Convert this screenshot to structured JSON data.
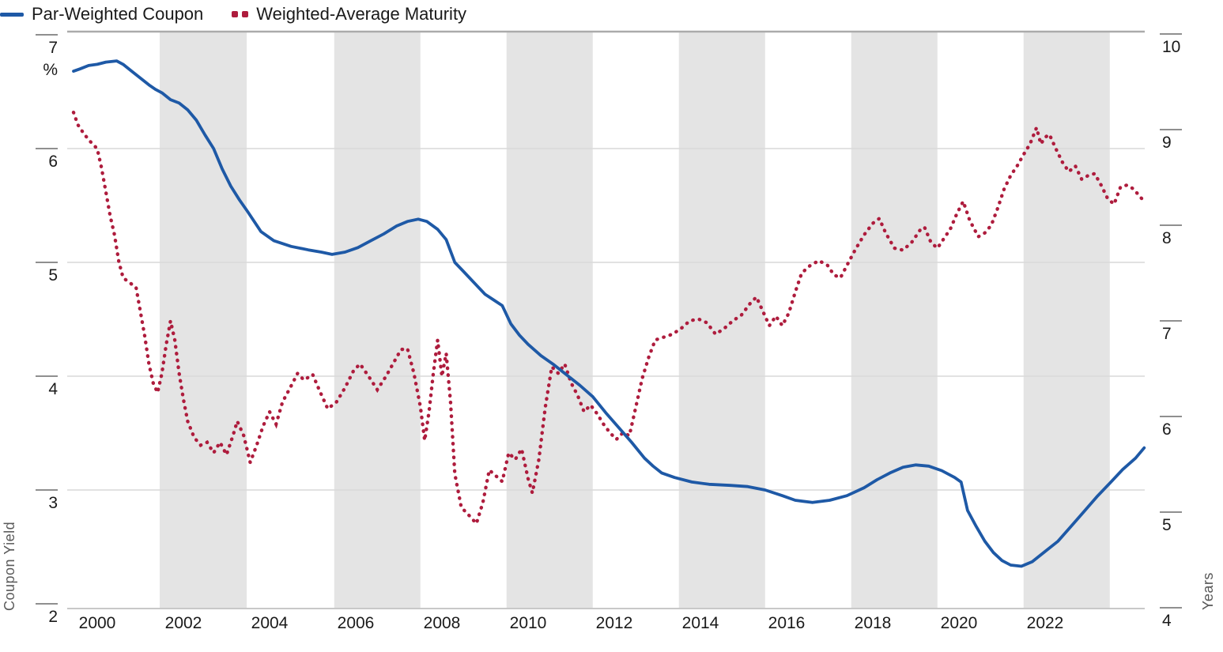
{
  "legend": {
    "items": [
      {
        "label": "Par-Weighted Coupon",
        "style": "solid"
      },
      {
        "label": "Weighted-Average Maturity",
        "style": "dotted"
      }
    ]
  },
  "left_axis": {
    "title": "Coupon Yield",
    "unit": "%",
    "ticks": [
      7,
      6,
      5,
      4,
      3,
      2
    ],
    "range": [
      2,
      7
    ]
  },
  "right_axis": {
    "title": "Years",
    "ticks": [
      10,
      9,
      8,
      7,
      6,
      5,
      4
    ],
    "range": [
      4,
      10
    ]
  },
  "x_axis": {
    "ticks": [
      2000,
      2002,
      2004,
      2006,
      2008,
      2010,
      2012,
      2014,
      2016,
      2018,
      2020,
      2022
    ],
    "range": [
      1999.3,
      2024.35
    ]
  },
  "colors": {
    "coupon": "#1E59A6",
    "maturity": "#AE1C3D",
    "band": "#E4E4E4",
    "gridline": "#D9D9D9",
    "top_border": "#ABABAB",
    "axis_line": "#C8C8C8",
    "tick_mark": "#8F8F8F"
  },
  "chart_data": {
    "type": "line",
    "title": "",
    "xlabel": "",
    "legend_position": "top-left",
    "grid": "horizontal",
    "shaded_bands_years": [
      [
        2001.45,
        2003.47
      ],
      [
        2005.5,
        2007.5
      ],
      [
        2009.5,
        2011.5
      ],
      [
        2013.5,
        2015.5
      ],
      [
        2017.5,
        2019.5
      ],
      [
        2021.5,
        2023.5
      ]
    ],
    "series": [
      {
        "name": "Par-Weighted Coupon",
        "axis": "left",
        "unit": "%",
        "style": "solid",
        "points": [
          [
            1999.45,
            6.68
          ],
          [
            1999.6,
            6.7
          ],
          [
            1999.8,
            6.73
          ],
          [
            2000.0,
            6.74
          ],
          [
            2000.2,
            6.76
          ],
          [
            2000.45,
            6.77
          ],
          [
            2000.6,
            6.74
          ],
          [
            2000.8,
            6.68
          ],
          [
            2001.0,
            6.62
          ],
          [
            2001.2,
            6.56
          ],
          [
            2001.35,
            6.52
          ],
          [
            2001.5,
            6.49
          ],
          [
            2001.7,
            6.43
          ],
          [
            2001.9,
            6.4
          ],
          [
            2002.1,
            6.34
          ],
          [
            2002.3,
            6.25
          ],
          [
            2002.5,
            6.12
          ],
          [
            2002.7,
            6.0
          ],
          [
            2002.9,
            5.82
          ],
          [
            2003.1,
            5.67
          ],
          [
            2003.3,
            5.55
          ],
          [
            2003.5,
            5.44
          ],
          [
            2003.8,
            5.27
          ],
          [
            2004.1,
            5.19
          ],
          [
            2004.5,
            5.14
          ],
          [
            2004.9,
            5.11
          ],
          [
            2005.2,
            5.09
          ],
          [
            2005.45,
            5.07
          ],
          [
            2005.75,
            5.09
          ],
          [
            2006.05,
            5.13
          ],
          [
            2006.35,
            5.19
          ],
          [
            2006.65,
            5.25
          ],
          [
            2006.95,
            5.32
          ],
          [
            2007.2,
            5.36
          ],
          [
            2007.45,
            5.38
          ],
          [
            2007.65,
            5.36
          ],
          [
            2007.9,
            5.29
          ],
          [
            2008.1,
            5.2
          ],
          [
            2008.3,
            5.0
          ],
          [
            2008.5,
            4.92
          ],
          [
            2008.75,
            4.82
          ],
          [
            2009.0,
            4.72
          ],
          [
            2009.2,
            4.67
          ],
          [
            2009.4,
            4.62
          ],
          [
            2009.6,
            4.46
          ],
          [
            2009.8,
            4.36
          ],
          [
            2010.0,
            4.28
          ],
          [
            2010.3,
            4.18
          ],
          [
            2010.6,
            4.1
          ],
          [
            2010.9,
            4.01
          ],
          [
            2011.2,
            3.92
          ],
          [
            2011.5,
            3.82
          ],
          [
            2011.8,
            3.68
          ],
          [
            2012.1,
            3.55
          ],
          [
            2012.4,
            3.42
          ],
          [
            2012.7,
            3.28
          ],
          [
            2012.9,
            3.21
          ],
          [
            2013.1,
            3.15
          ],
          [
            2013.4,
            3.11
          ],
          [
            2013.8,
            3.07
          ],
          [
            2014.2,
            3.05
          ],
          [
            2014.7,
            3.04
          ],
          [
            2015.1,
            3.03
          ],
          [
            2015.5,
            3.0
          ],
          [
            2015.9,
            2.95
          ],
          [
            2016.2,
            2.91
          ],
          [
            2016.6,
            2.89
          ],
          [
            2017.0,
            2.91
          ],
          [
            2017.4,
            2.95
          ],
          [
            2017.8,
            3.02
          ],
          [
            2018.1,
            3.09
          ],
          [
            2018.4,
            3.15
          ],
          [
            2018.7,
            3.2
          ],
          [
            2019.0,
            3.22
          ],
          [
            2019.3,
            3.21
          ],
          [
            2019.6,
            3.17
          ],
          [
            2019.9,
            3.11
          ],
          [
            2020.05,
            3.07
          ],
          [
            2020.2,
            2.82
          ],
          [
            2020.4,
            2.68
          ],
          [
            2020.6,
            2.55
          ],
          [
            2020.8,
            2.45
          ],
          [
            2021.0,
            2.38
          ],
          [
            2021.2,
            2.34
          ],
          [
            2021.45,
            2.33
          ],
          [
            2021.7,
            2.37
          ],
          [
            2022.0,
            2.46
          ],
          [
            2022.3,
            2.55
          ],
          [
            2022.6,
            2.68
          ],
          [
            2022.9,
            2.81
          ],
          [
            2023.2,
            2.94
          ],
          [
            2023.5,
            3.06
          ],
          [
            2023.8,
            3.18
          ],
          [
            2024.1,
            3.28
          ],
          [
            2024.3,
            3.37
          ]
        ]
      },
      {
        "name": "Weighted-Average Maturity",
        "axis": "right",
        "unit": "Years",
        "style": "dotted",
        "points": [
          [
            1999.45,
            9.18
          ],
          [
            1999.55,
            9.05
          ],
          [
            1999.7,
            8.95
          ],
          [
            1999.85,
            8.87
          ],
          [
            2000.0,
            8.8
          ],
          [
            2000.1,
            8.6
          ],
          [
            2000.2,
            8.35
          ],
          [
            2000.3,
            8.1
          ],
          [
            2000.4,
            7.9
          ],
          [
            2000.5,
            7.62
          ],
          [
            2000.6,
            7.45
          ],
          [
            2000.75,
            7.4
          ],
          [
            2000.9,
            7.35
          ],
          [
            2001.0,
            7.1
          ],
          [
            2001.1,
            6.85
          ],
          [
            2001.2,
            6.55
          ],
          [
            2001.3,
            6.35
          ],
          [
            2001.4,
            6.25
          ],
          [
            2001.5,
            6.45
          ],
          [
            2001.6,
            6.75
          ],
          [
            2001.7,
            7.0
          ],
          [
            2001.8,
            6.8
          ],
          [
            2001.9,
            6.45
          ],
          [
            2002.0,
            6.18
          ],
          [
            2002.1,
            5.95
          ],
          [
            2002.25,
            5.78
          ],
          [
            2002.4,
            5.7
          ],
          [
            2002.55,
            5.73
          ],
          [
            2002.7,
            5.62
          ],
          [
            2002.85,
            5.73
          ],
          [
            2003.0,
            5.6
          ],
          [
            2003.15,
            5.8
          ],
          [
            2003.25,
            5.95
          ],
          [
            2003.4,
            5.8
          ],
          [
            2003.55,
            5.52
          ],
          [
            2003.7,
            5.7
          ],
          [
            2003.85,
            5.9
          ],
          [
            2004.0,
            6.05
          ],
          [
            2004.15,
            5.92
          ],
          [
            2004.3,
            6.15
          ],
          [
            2004.5,
            6.32
          ],
          [
            2004.65,
            6.45
          ],
          [
            2004.8,
            6.38
          ],
          [
            2005.0,
            6.44
          ],
          [
            2005.15,
            6.28
          ],
          [
            2005.35,
            6.08
          ],
          [
            2005.55,
            6.15
          ],
          [
            2005.75,
            6.3
          ],
          [
            2005.95,
            6.48
          ],
          [
            2006.1,
            6.55
          ],
          [
            2006.3,
            6.42
          ],
          [
            2006.5,
            6.28
          ],
          [
            2006.7,
            6.42
          ],
          [
            2006.9,
            6.58
          ],
          [
            2007.05,
            6.7
          ],
          [
            2007.2,
            6.71
          ],
          [
            2007.35,
            6.45
          ],
          [
            2007.5,
            6.1
          ],
          [
            2007.6,
            5.75
          ],
          [
            2007.7,
            6.05
          ],
          [
            2007.8,
            6.45
          ],
          [
            2007.9,
            6.8
          ],
          [
            2008.0,
            6.42
          ],
          [
            2008.1,
            6.66
          ],
          [
            2008.2,
            6.15
          ],
          [
            2008.3,
            5.4
          ],
          [
            2008.45,
            5.05
          ],
          [
            2008.6,
            4.98
          ],
          [
            2008.8,
            4.88
          ],
          [
            2008.95,
            5.1
          ],
          [
            2009.1,
            5.44
          ],
          [
            2009.25,
            5.38
          ],
          [
            2009.4,
            5.32
          ],
          [
            2009.55,
            5.62
          ],
          [
            2009.7,
            5.55
          ],
          [
            2009.85,
            5.66
          ],
          [
            2010.0,
            5.35
          ],
          [
            2010.1,
            5.2
          ],
          [
            2010.25,
            5.55
          ],
          [
            2010.4,
            6.1
          ],
          [
            2010.55,
            6.52
          ],
          [
            2010.7,
            6.45
          ],
          [
            2010.85,
            6.55
          ],
          [
            2011.0,
            6.35
          ],
          [
            2011.15,
            6.22
          ],
          [
            2011.3,
            6.05
          ],
          [
            2011.45,
            6.12
          ],
          [
            2011.6,
            6.03
          ],
          [
            2011.75,
            5.92
          ],
          [
            2011.9,
            5.83
          ],
          [
            2012.05,
            5.76
          ],
          [
            2012.2,
            5.83
          ],
          [
            2012.35,
            5.8
          ],
          [
            2012.5,
            6.1
          ],
          [
            2012.65,
            6.4
          ],
          [
            2012.8,
            6.62
          ],
          [
            2012.95,
            6.8
          ],
          [
            2013.15,
            6.83
          ],
          [
            2013.35,
            6.86
          ],
          [
            2013.55,
            6.92
          ],
          [
            2013.75,
            7.0
          ],
          [
            2013.95,
            7.02
          ],
          [
            2014.15,
            6.98
          ],
          [
            2014.35,
            6.86
          ],
          [
            2014.55,
            6.92
          ],
          [
            2014.75,
            7.0
          ],
          [
            2014.95,
            7.06
          ],
          [
            2015.15,
            7.18
          ],
          [
            2015.3,
            7.25
          ],
          [
            2015.45,
            7.1
          ],
          [
            2015.6,
            6.95
          ],
          [
            2015.75,
            7.05
          ],
          [
            2015.9,
            6.95
          ],
          [
            2016.05,
            7.08
          ],
          [
            2016.2,
            7.3
          ],
          [
            2016.35,
            7.5
          ],
          [
            2016.55,
            7.58
          ],
          [
            2016.75,
            7.63
          ],
          [
            2016.95,
            7.58
          ],
          [
            2017.1,
            7.48
          ],
          [
            2017.25,
            7.45
          ],
          [
            2017.4,
            7.58
          ],
          [
            2017.6,
            7.75
          ],
          [
            2017.8,
            7.9
          ],
          [
            2018.0,
            8.02
          ],
          [
            2018.15,
            8.07
          ],
          [
            2018.3,
            7.92
          ],
          [
            2018.5,
            7.76
          ],
          [
            2018.7,
            7.74
          ],
          [
            2018.9,
            7.82
          ],
          [
            2019.1,
            7.95
          ],
          [
            2019.2,
            7.98
          ],
          [
            2019.35,
            7.82
          ],
          [
            2019.5,
            7.76
          ],
          [
            2019.65,
            7.86
          ],
          [
            2019.8,
            7.96
          ],
          [
            2019.95,
            8.12
          ],
          [
            2020.1,
            8.25
          ],
          [
            2020.25,
            8.05
          ],
          [
            2020.45,
            7.88
          ],
          [
            2020.6,
            7.92
          ],
          [
            2020.75,
            8.0
          ],
          [
            2020.9,
            8.18
          ],
          [
            2021.05,
            8.38
          ],
          [
            2021.2,
            8.52
          ],
          [
            2021.35,
            8.62
          ],
          [
            2021.5,
            8.74
          ],
          [
            2021.65,
            8.85
          ],
          [
            2021.8,
            9.02
          ],
          [
            2021.9,
            8.85
          ],
          [
            2022.0,
            8.92
          ],
          [
            2022.1,
            8.95
          ],
          [
            2022.25,
            8.8
          ],
          [
            2022.4,
            8.66
          ],
          [
            2022.55,
            8.56
          ],
          [
            2022.7,
            8.62
          ],
          [
            2022.85,
            8.48
          ],
          [
            2023.0,
            8.52
          ],
          [
            2023.15,
            8.54
          ],
          [
            2023.3,
            8.42
          ],
          [
            2023.45,
            8.28
          ],
          [
            2023.6,
            8.22
          ],
          [
            2023.75,
            8.4
          ],
          [
            2023.9,
            8.42
          ],
          [
            2024.05,
            8.38
          ],
          [
            2024.2,
            8.3
          ],
          [
            2024.3,
            8.25
          ]
        ]
      }
    ]
  }
}
